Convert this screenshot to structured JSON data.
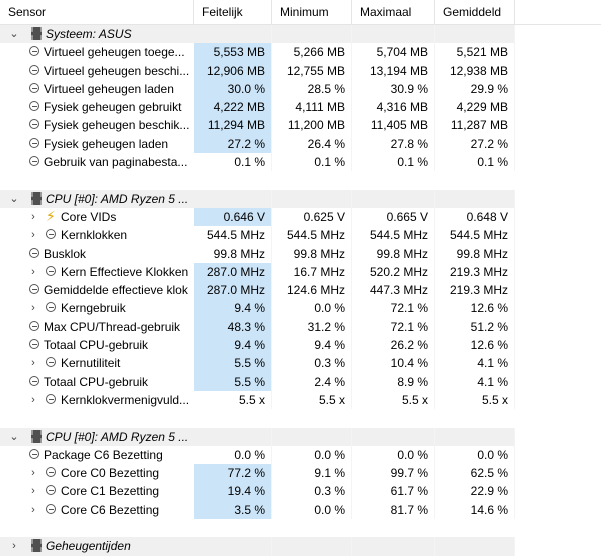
{
  "columns": [
    "Sensor",
    "Feitelijk",
    "Minimum",
    "Maximaal",
    "Gemiddeld"
  ],
  "rows": [
    {
      "type": "group",
      "label": "Systeem: ASUS",
      "expander": "⌄",
      "icon": "chip"
    },
    {
      "type": "item",
      "label": "Virtueel geheugen toege...",
      "icon": "clock",
      "level": 1,
      "values": [
        "5,553 MB",
        "5,266 MB",
        "5,704 MB",
        "5,521 MB"
      ],
      "hl": true
    },
    {
      "type": "item",
      "label": "Virtueel geheugen beschi...",
      "icon": "clock",
      "level": 1,
      "values": [
        "12,906 MB",
        "12,755 MB",
        "13,194 MB",
        "12,938 MB"
      ],
      "hl": true
    },
    {
      "type": "item",
      "label": "Virtueel geheugen laden",
      "icon": "clock",
      "level": 1,
      "values": [
        "30.0 %",
        "28.5 %",
        "30.9 %",
        "29.9 %"
      ],
      "hl": true
    },
    {
      "type": "item",
      "label": "Fysiek geheugen gebruikt",
      "icon": "clock",
      "level": 1,
      "values": [
        "4,222 MB",
        "4,111 MB",
        "4,316 MB",
        "4,229 MB"
      ],
      "hl": true
    },
    {
      "type": "item",
      "label": "Fysiek geheugen beschik...",
      "icon": "clock",
      "level": 1,
      "values": [
        "11,294 MB",
        "11,200 MB",
        "11,405 MB",
        "11,287 MB"
      ],
      "hl": true
    },
    {
      "type": "item",
      "label": "Fysiek geheugen laden",
      "icon": "clock",
      "level": 1,
      "values": [
        "27.2 %",
        "26.4 %",
        "27.8 %",
        "27.2 %"
      ],
      "hl": true
    },
    {
      "type": "item",
      "label": "Gebruik van paginabesta...",
      "icon": "clock",
      "level": 1,
      "values": [
        "0.1 %",
        "0.1 %",
        "0.1 %",
        "0.1 %"
      ],
      "hl": false
    },
    {
      "type": "spacer"
    },
    {
      "type": "group",
      "label": "CPU [#0]: AMD Ryzen 5 ...",
      "expander": "⌄",
      "icon": "chip"
    },
    {
      "type": "item",
      "label": "Core VIDs",
      "icon": "bolt",
      "level": 2,
      "expander": "›",
      "values": [
        "0.646 V",
        "0.625 V",
        "0.665 V",
        "0.648 V"
      ],
      "hl": true
    },
    {
      "type": "item",
      "label": "Kernklokken",
      "icon": "clock",
      "level": 2,
      "expander": "›",
      "values": [
        "544.5 MHz",
        "544.5 MHz",
        "544.5 MHz",
        "544.5 MHz"
      ],
      "hl": false
    },
    {
      "type": "item",
      "label": "Busklok",
      "icon": "clock",
      "level": 1,
      "values": [
        "99.8 MHz",
        "99.8 MHz",
        "99.8 MHz",
        "99.8 MHz"
      ],
      "hl": false
    },
    {
      "type": "item",
      "label": "Kern Effectieve Klokken",
      "icon": "clock",
      "level": 2,
      "expander": "›",
      "values": [
        "287.0 MHz",
        "16.7 MHz",
        "520.2 MHz",
        "219.3 MHz"
      ],
      "hl": true
    },
    {
      "type": "item",
      "label": "Gemiddelde effectieve klok",
      "icon": "clock",
      "level": 1,
      "values": [
        "287.0 MHz",
        "124.6 MHz",
        "447.3 MHz",
        "219.3 MHz"
      ],
      "hl": true
    },
    {
      "type": "item",
      "label": "Kerngebruik",
      "icon": "clock",
      "level": 2,
      "expander": "›",
      "values": [
        "9.4 %",
        "0.0 %",
        "72.1 %",
        "12.6 %"
      ],
      "hl": true
    },
    {
      "type": "item",
      "label": "Max CPU/Thread-gebruik",
      "icon": "clock",
      "level": 1,
      "values": [
        "48.3 %",
        "31.2 %",
        "72.1 %",
        "51.2 %"
      ],
      "hl": true
    },
    {
      "type": "item",
      "label": "Totaal CPU-gebruik",
      "icon": "clock",
      "level": 1,
      "values": [
        "9.4 %",
        "9.4 %",
        "26.2 %",
        "12.6 %"
      ],
      "hl": true
    },
    {
      "type": "item",
      "label": "Kernutiliteit",
      "icon": "clock",
      "level": 2,
      "expander": "›",
      "values": [
        "5.5 %",
        "0.3 %",
        "10.4 %",
        "4.1 %"
      ],
      "hl": true
    },
    {
      "type": "item",
      "label": "Totaal CPU-gebruik",
      "icon": "clock",
      "level": 1,
      "values": [
        "5.5 %",
        "2.4 %",
        "8.9 %",
        "4.1 %"
      ],
      "hl": true
    },
    {
      "type": "item",
      "label": "Kernklokvermenigvuld...",
      "icon": "clock",
      "level": 2,
      "expander": "›",
      "values": [
        "5.5 x",
        "5.5 x",
        "5.5 x",
        "5.5 x"
      ],
      "hl": false
    },
    {
      "type": "spacer"
    },
    {
      "type": "group",
      "label": "CPU [#0]: AMD Ryzen 5 ...",
      "expander": "⌄",
      "icon": "chip"
    },
    {
      "type": "item",
      "label": "Package C6 Bezetting",
      "icon": "clock",
      "level": 1,
      "values": [
        "0.0 %",
        "0.0 %",
        "0.0 %",
        "0.0 %"
      ],
      "hl": false
    },
    {
      "type": "item",
      "label": "Core C0 Bezetting",
      "icon": "clock",
      "level": 2,
      "expander": "›",
      "values": [
        "77.2 %",
        "9.1 %",
        "99.7 %",
        "62.5 %"
      ],
      "hl": true
    },
    {
      "type": "item",
      "label": "Core C1 Bezetting",
      "icon": "clock",
      "level": 2,
      "expander": "›",
      "values": [
        "19.4 %",
        "0.3 %",
        "61.7 %",
        "22.9 %"
      ],
      "hl": true
    },
    {
      "type": "item",
      "label": "Core C6 Bezetting",
      "icon": "clock",
      "level": 2,
      "expander": "›",
      "values": [
        "3.5 %",
        "0.0 %",
        "81.7 %",
        "14.6 %"
      ],
      "hl": true
    },
    {
      "type": "spacer"
    },
    {
      "type": "group",
      "label": "Geheugentijden",
      "expander": "›",
      "icon": "chip"
    }
  ]
}
